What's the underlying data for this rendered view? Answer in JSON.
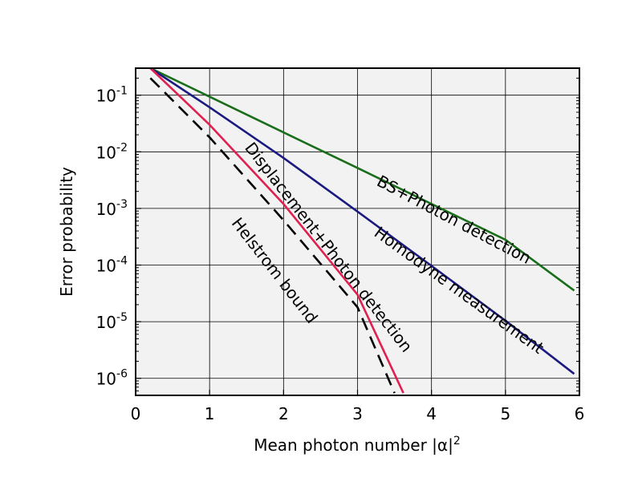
{
  "chart_data": {
    "type": "line",
    "title": "",
    "xlabel": "Mean photon number |α|",
    "xlabel_superscript": "2",
    "ylabel": "Error probability",
    "xlim": [
      0,
      6
    ],
    "ylim": [
      5e-07,
      0.3
    ],
    "yscale": "log",
    "grid": true,
    "background": "#f2f2f2",
    "x_ticks": [
      {
        "value": 0,
        "label": "0"
      },
      {
        "value": 1,
        "label": "1"
      },
      {
        "value": 2,
        "label": "2"
      },
      {
        "value": 3,
        "label": "3"
      },
      {
        "value": 4,
        "label": "4"
      },
      {
        "value": 5,
        "label": "5"
      },
      {
        "value": 6,
        "label": "6"
      }
    ],
    "y_ticks": [
      {
        "value": 0.1,
        "base": "10",
        "exp": "-1"
      },
      {
        "value": 0.01,
        "base": "10",
        "exp": "-2"
      },
      {
        "value": 0.001,
        "base": "10",
        "exp": "-3"
      },
      {
        "value": 0.0001,
        "base": "10",
        "exp": "-4"
      },
      {
        "value": 1e-05,
        "base": "10",
        "exp": "-5"
      },
      {
        "value": 1e-06,
        "base": "10",
        "exp": "-6"
      }
    ],
    "series": [
      {
        "name": "BS+Photon detection",
        "color": "#1a6e1a",
        "dash": "solid",
        "x": [
          0.2,
          1,
          2,
          3,
          4,
          5,
          5.93
        ],
        "y": [
          0.3,
          0.094,
          0.022,
          0.0052,
          0.0012,
          0.00028,
          3.55e-05
        ]
      },
      {
        "name": "Homodyne measurement",
        "color": "#1a1a80",
        "dash": "solid",
        "x": [
          0.2,
          1,
          2,
          3,
          4,
          5,
          5.93
        ],
        "y": [
          0.3,
          0.061,
          0.0078,
          0.00088,
          9.7e-05,
          1.04e-05,
          1.2e-06
        ]
      },
      {
        "name": "Displacement+Photon detection",
        "color": "#e02050",
        "dash": "solid",
        "x": [
          0.2,
          1,
          2,
          3,
          3.62
        ],
        "y": [
          0.3,
          0.03,
          0.0012,
          3e-05,
          5.5e-07
        ]
      },
      {
        "name": "Helstrom bound",
        "color": "#000000",
        "dash": "dashed",
        "x": [
          0.2,
          1,
          2,
          3,
          3.5
        ],
        "y": [
          0.2,
          0.018,
          0.00062,
          1.8e-05,
          5.5e-07
        ]
      }
    ]
  }
}
